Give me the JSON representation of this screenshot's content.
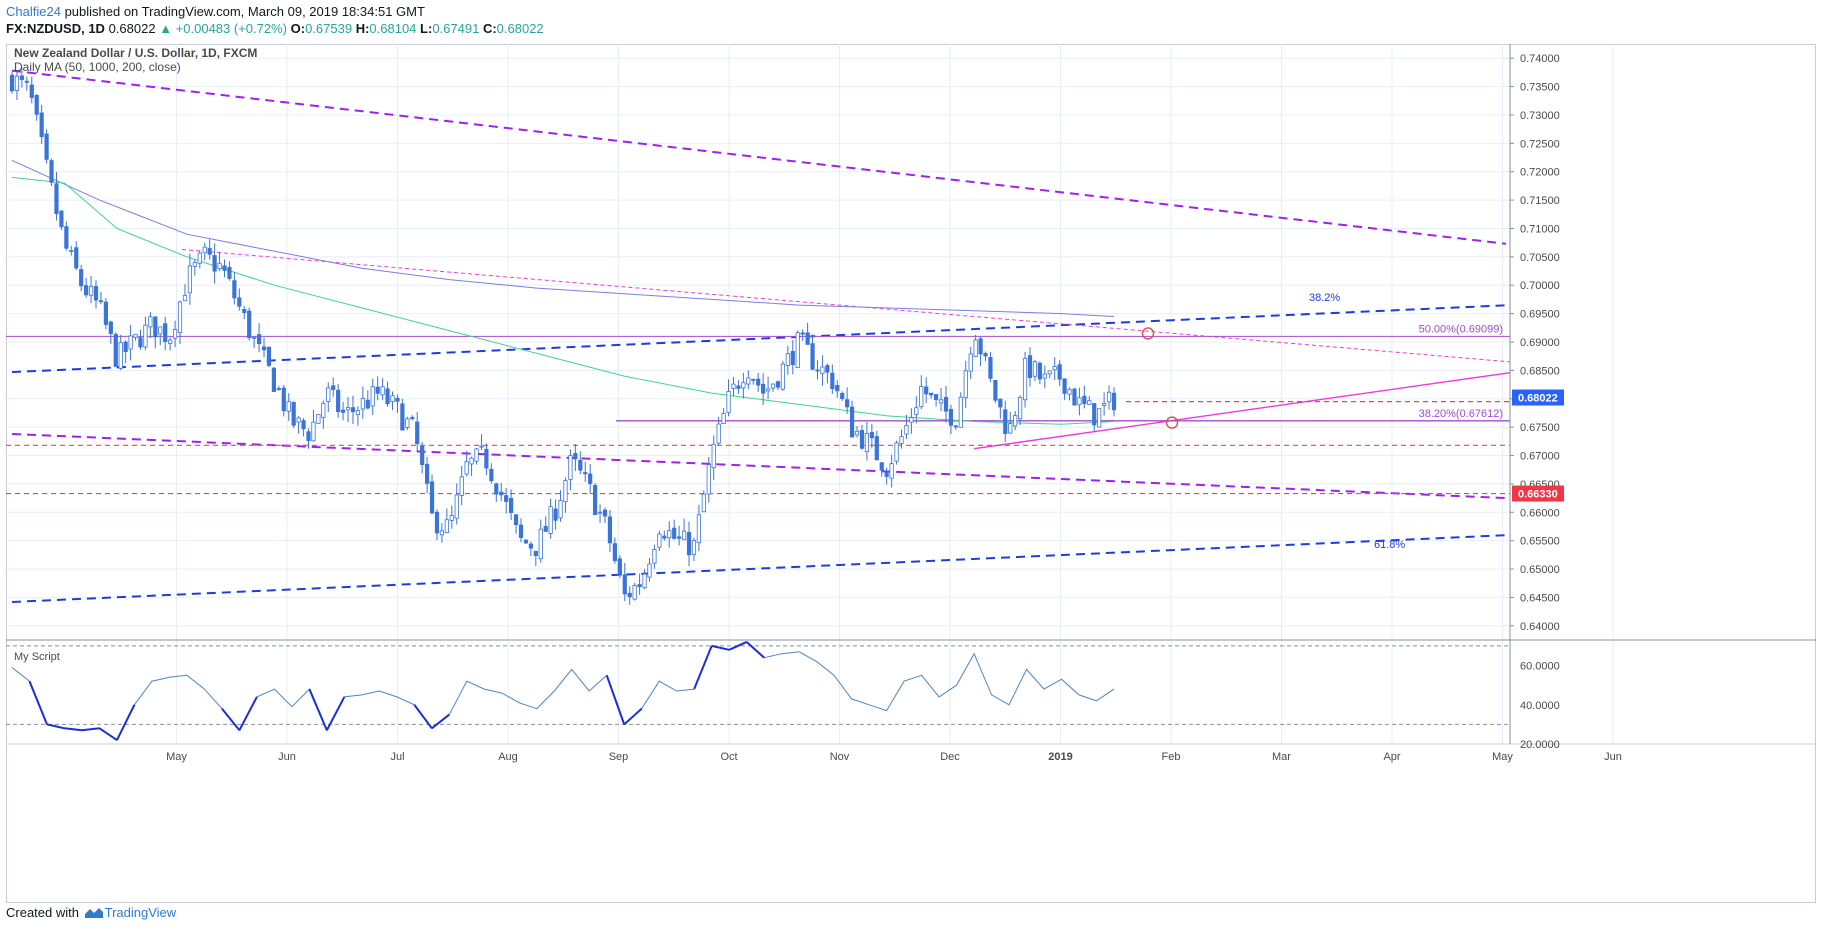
{
  "header": {
    "author": "Chalfie24",
    "published_text": "published on TradingView.com, March 09, 2019 18:34:51 GMT",
    "symbol": "FX:NZDUSD, 1D",
    "last": "0.68022",
    "change": "▲ +0.00483 (+0.72%)",
    "o_label": "O:",
    "o": "0.67539",
    "h_label": "H:",
    "h": "0.68104",
    "l_label": "L:",
    "l": "0.67491",
    "c_label": "C:",
    "c": "0.68022"
  },
  "legend": {
    "title": "New Zealand Dollar / U.S. Dollar, 1D, FXCM",
    "indicator": "Daily MA (50, 1000, 200, close)"
  },
  "footer": {
    "created_with": "Created with",
    "brand": "TradingView"
  },
  "colors": {
    "up": "#ffffff",
    "down": "#3a74d8",
    "candle_border": "#3a74d8",
    "ma_green": "#3cd690",
    "ma_blue": "#7b7fe0",
    "purple_dash": "#a020f0",
    "blue_dash": "#1e3de0",
    "magenta": "#ee3ad8",
    "red_dash": "#e34b4b",
    "fib": "#a34bd1",
    "osc": "#4a86c8",
    "osc_bold": "#1a2fd6",
    "grid": "#e8eef8"
  },
  "chart_data": {
    "type": "candlestick",
    "symbol": "NZDUSD",
    "timeframe": "1D",
    "ylim": [
      0.6375,
      0.7425
    ],
    "y_ticks": [
      "0.64000",
      "0.64500",
      "0.65000",
      "0.65500",
      "0.66000",
      "0.66500",
      "0.67000",
      "0.67500",
      "0.68000",
      "0.68500",
      "0.69000",
      "0.69500",
      "0.70000",
      "0.70500",
      "0.71000",
      "0.71500",
      "0.72000",
      "0.72500",
      "0.73000",
      "0.73500",
      "0.74000"
    ],
    "x_ticks": [
      {
        "label": "May",
        "month": 1
      },
      {
        "label": "Jun",
        "month": 2
      },
      {
        "label": "Jul",
        "month": 3
      },
      {
        "label": "Aug",
        "month": 4
      },
      {
        "label": "Sep",
        "month": 5
      },
      {
        "label": "Oct",
        "month": 6
      },
      {
        "label": "Nov",
        "month": 7
      },
      {
        "label": "Dec",
        "month": 8
      },
      {
        "label": "2019",
        "month": 9,
        "bold": true
      },
      {
        "label": "Feb",
        "month": 10
      },
      {
        "label": "Mar",
        "month": 11
      },
      {
        "label": "Apr",
        "month": 12
      },
      {
        "label": "May",
        "month": 13
      },
      {
        "label": "Jun",
        "month": 14
      }
    ],
    "close_path": [
      [
        0,
        0.7365
      ],
      [
        1,
        0.734
      ],
      [
        2,
        0.72
      ],
      [
        3,
        0.707
      ],
      [
        4,
        0.7
      ],
      [
        5,
        0.696
      ],
      [
        6,
        0.687
      ],
      [
        7,
        0.69
      ],
      [
        8,
        0.693
      ],
      [
        9,
        0.691
      ],
      [
        10,
        0.701
      ],
      [
        11,
        0.705
      ],
      [
        12,
        0.703
      ],
      [
        13,
        0.696
      ],
      [
        14,
        0.689
      ],
      [
        15,
        0.683
      ],
      [
        16,
        0.676
      ],
      [
        17,
        0.674
      ],
      [
        18,
        0.681
      ],
      [
        19,
        0.677
      ],
      [
        20,
        0.679
      ],
      [
        21,
        0.681
      ],
      [
        22,
        0.678
      ],
      [
        23,
        0.674
      ],
      [
        24,
        0.659
      ],
      [
        25,
        0.657
      ],
      [
        26,
        0.668
      ],
      [
        27,
        0.67
      ],
      [
        28,
        0.663
      ],
      [
        29,
        0.655
      ],
      [
        30,
        0.654
      ],
      [
        31,
        0.66
      ],
      [
        32,
        0.669
      ],
      [
        33,
        0.664
      ],
      [
        34,
        0.657
      ],
      [
        35,
        0.645
      ],
      [
        36,
        0.648
      ],
      [
        37,
        0.658
      ],
      [
        38,
        0.655
      ],
      [
        39,
        0.654
      ],
      [
        40,
        0.67
      ],
      [
        41,
        0.68
      ],
      [
        42,
        0.686
      ],
      [
        43,
        0.681
      ],
      [
        44,
        0.685
      ],
      [
        45,
        0.69
      ],
      [
        46,
        0.686
      ],
      [
        47,
        0.683
      ],
      [
        48,
        0.675
      ],
      [
        49,
        0.672
      ],
      [
        50,
        0.668
      ],
      [
        51,
        0.674
      ],
      [
        52,
        0.682
      ],
      [
        53,
        0.678
      ],
      [
        54,
        0.677
      ],
      [
        55,
        0.693
      ],
      [
        56,
        0.682
      ],
      [
        57,
        0.674
      ],
      [
        58,
        0.686
      ],
      [
        59,
        0.683
      ],
      [
        60,
        0.684
      ],
      [
        61,
        0.679
      ],
      [
        62,
        0.677
      ],
      [
        63,
        0.68
      ]
    ],
    "ma_200": [
      [
        0,
        0.719
      ],
      [
        3,
        0.718
      ],
      [
        6,
        0.71
      ],
      [
        10,
        0.705
      ],
      [
        15,
        0.7
      ],
      [
        20,
        0.696
      ],
      [
        25,
        0.692
      ],
      [
        30,
        0.688
      ],
      [
        35,
        0.684
      ],
      [
        40,
        0.681
      ],
      [
        45,
        0.679
      ],
      [
        50,
        0.677
      ],
      [
        55,
        0.676
      ],
      [
        60,
        0.6755
      ],
      [
        63,
        0.676
      ]
    ],
    "ma_1000": [
      [
        0,
        0.722
      ],
      [
        5,
        0.715
      ],
      [
        10,
        0.709
      ],
      [
        15,
        0.706
      ],
      [
        20,
        0.703
      ],
      [
        25,
        0.701
      ],
      [
        30,
        0.6995
      ],
      [
        35,
        0.6985
      ],
      [
        40,
        0.6975
      ],
      [
        45,
        0.6965
      ],
      [
        50,
        0.696
      ],
      [
        55,
        0.6955
      ],
      [
        60,
        0.695
      ],
      [
        63,
        0.6945
      ]
    ],
    "oscillator": {
      "title": "My Script",
      "ylim": [
        20,
        73
      ],
      "y_ticks": [
        "20.0000",
        "40.0000",
        "60.0000"
      ],
      "upper_level": 70,
      "lower_level": 30,
      "values": [
        [
          0,
          59
        ],
        [
          1,
          52
        ],
        [
          2,
          30
        ],
        [
          3,
          28
        ],
        [
          4,
          27
        ],
        [
          5,
          28
        ],
        [
          6,
          22
        ],
        [
          7,
          40
        ],
        [
          8,
          52
        ],
        [
          9,
          54
        ],
        [
          10,
          55
        ],
        [
          11,
          48
        ],
        [
          12,
          38
        ],
        [
          13,
          27
        ],
        [
          14,
          44
        ],
        [
          15,
          48
        ],
        [
          16,
          39
        ],
        [
          17,
          48
        ],
        [
          18,
          27
        ],
        [
          19,
          44
        ],
        [
          20,
          45
        ],
        [
          21,
          47
        ],
        [
          22,
          44
        ],
        [
          23,
          40
        ],
        [
          24,
          28
        ],
        [
          25,
          35
        ],
        [
          26,
          52
        ],
        [
          27,
          48
        ],
        [
          28,
          46
        ],
        [
          29,
          41
        ],
        [
          30,
          38
        ],
        [
          31,
          47
        ],
        [
          32,
          58
        ],
        [
          33,
          47
        ],
        [
          34,
          55
        ],
        [
          35,
          30
        ],
        [
          36,
          38
        ],
        [
          37,
          52
        ],
        [
          38,
          47
        ],
        [
          39,
          48
        ],
        [
          40,
          70
        ],
        [
          41,
          68
        ],
        [
          42,
          72
        ],
        [
          43,
          64
        ],
        [
          44,
          66
        ],
        [
          45,
          67
        ],
        [
          46,
          62
        ],
        [
          47,
          55
        ],
        [
          48,
          43
        ],
        [
          49,
          40
        ],
        [
          50,
          37
        ],
        [
          51,
          52
        ],
        [
          52,
          55
        ],
        [
          53,
          44
        ],
        [
          54,
          50
        ],
        [
          55,
          66
        ],
        [
          56,
          45
        ],
        [
          57,
          40
        ],
        [
          58,
          58
        ],
        [
          59,
          48
        ],
        [
          60,
          53
        ],
        [
          61,
          45
        ],
        [
          62,
          42
        ],
        [
          63,
          48
        ]
      ]
    },
    "annotations": [
      {
        "label": "38.2%",
        "kind": "channel_fib"
      },
      {
        "label": "50.00%(0.69099)",
        "level": 0.69099
      },
      {
        "label": "38.20%(0.67612)",
        "level": 0.67612
      },
      {
        "label": "61.8%",
        "kind": "channel_fib"
      }
    ],
    "price_labels": [
      {
        "text": "0.68022",
        "value": 0.68022,
        "color": "#2962ff"
      },
      {
        "text": "0.66330",
        "value": 0.6633,
        "color": "#f23645"
      }
    ],
    "horizontal_levels": [
      0.69099,
      0.67612,
      0.6795,
      0.6718,
      0.6633
    ]
  }
}
